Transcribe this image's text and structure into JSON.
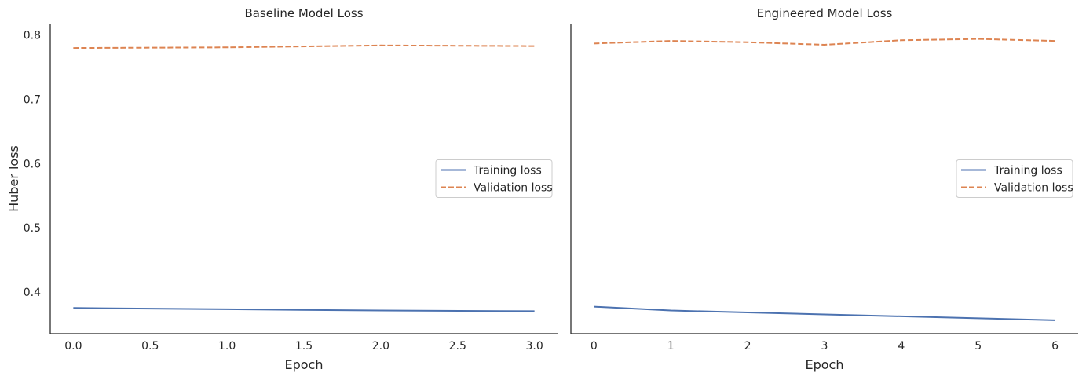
{
  "chart_data": [
    {
      "type": "line",
      "title": "Baseline Model Loss",
      "xlabel": "Epoch",
      "ylabel": "Huber loss",
      "xlim": [
        -0.15,
        3.15
      ],
      "ylim": [
        0.335,
        0.818
      ],
      "xticks": [
        0.0,
        0.5,
        1.0,
        1.5,
        2.0,
        2.5,
        3.0
      ],
      "xtick_labels": [
        "0.0",
        "0.5",
        "1.0",
        "1.5",
        "2.0",
        "2.5",
        "3.0"
      ],
      "yticks": [
        0.4,
        0.5,
        0.6,
        0.7,
        0.8
      ],
      "ytick_labels": [
        "0.4",
        "0.5",
        "0.6",
        "0.7",
        "0.8"
      ],
      "legend": "center-right",
      "grid": false,
      "x": [
        0,
        1,
        2,
        3
      ],
      "series": [
        {
          "name": "Training loss",
          "values": [
            0.375,
            0.373,
            0.371,
            0.37
          ],
          "color": "#4c72b0",
          "dash": "solid"
        },
        {
          "name": "Validation loss",
          "values": [
            0.78,
            0.781,
            0.784,
            0.783
          ],
          "color": "#dd8452",
          "dash": "dashed"
        }
      ]
    },
    {
      "type": "line",
      "title": "Engineered Model Loss",
      "xlabel": "Epoch",
      "ylabel": "",
      "xlim": [
        -0.3,
        6.3
      ],
      "ylim": [
        0.335,
        0.818
      ],
      "xticks": [
        0,
        1,
        2,
        3,
        4,
        5,
        6
      ],
      "xtick_labels": [
        "0",
        "1",
        "2",
        "3",
        "4",
        "5",
        "6"
      ],
      "yticks": [],
      "ytick_labels": [],
      "legend": "center-right",
      "grid": false,
      "x": [
        0,
        1,
        2,
        3,
        4,
        5,
        6
      ],
      "series": [
        {
          "name": "Training loss",
          "values": [
            0.377,
            0.371,
            0.368,
            0.365,
            0.362,
            0.359,
            0.356
          ],
          "color": "#4c72b0",
          "dash": "solid"
        },
        {
          "name": "Validation loss",
          "values": [
            0.787,
            0.791,
            0.789,
            0.785,
            0.792,
            0.794,
            0.791
          ],
          "color": "#dd8452",
          "dash": "dashed"
        }
      ]
    }
  ]
}
